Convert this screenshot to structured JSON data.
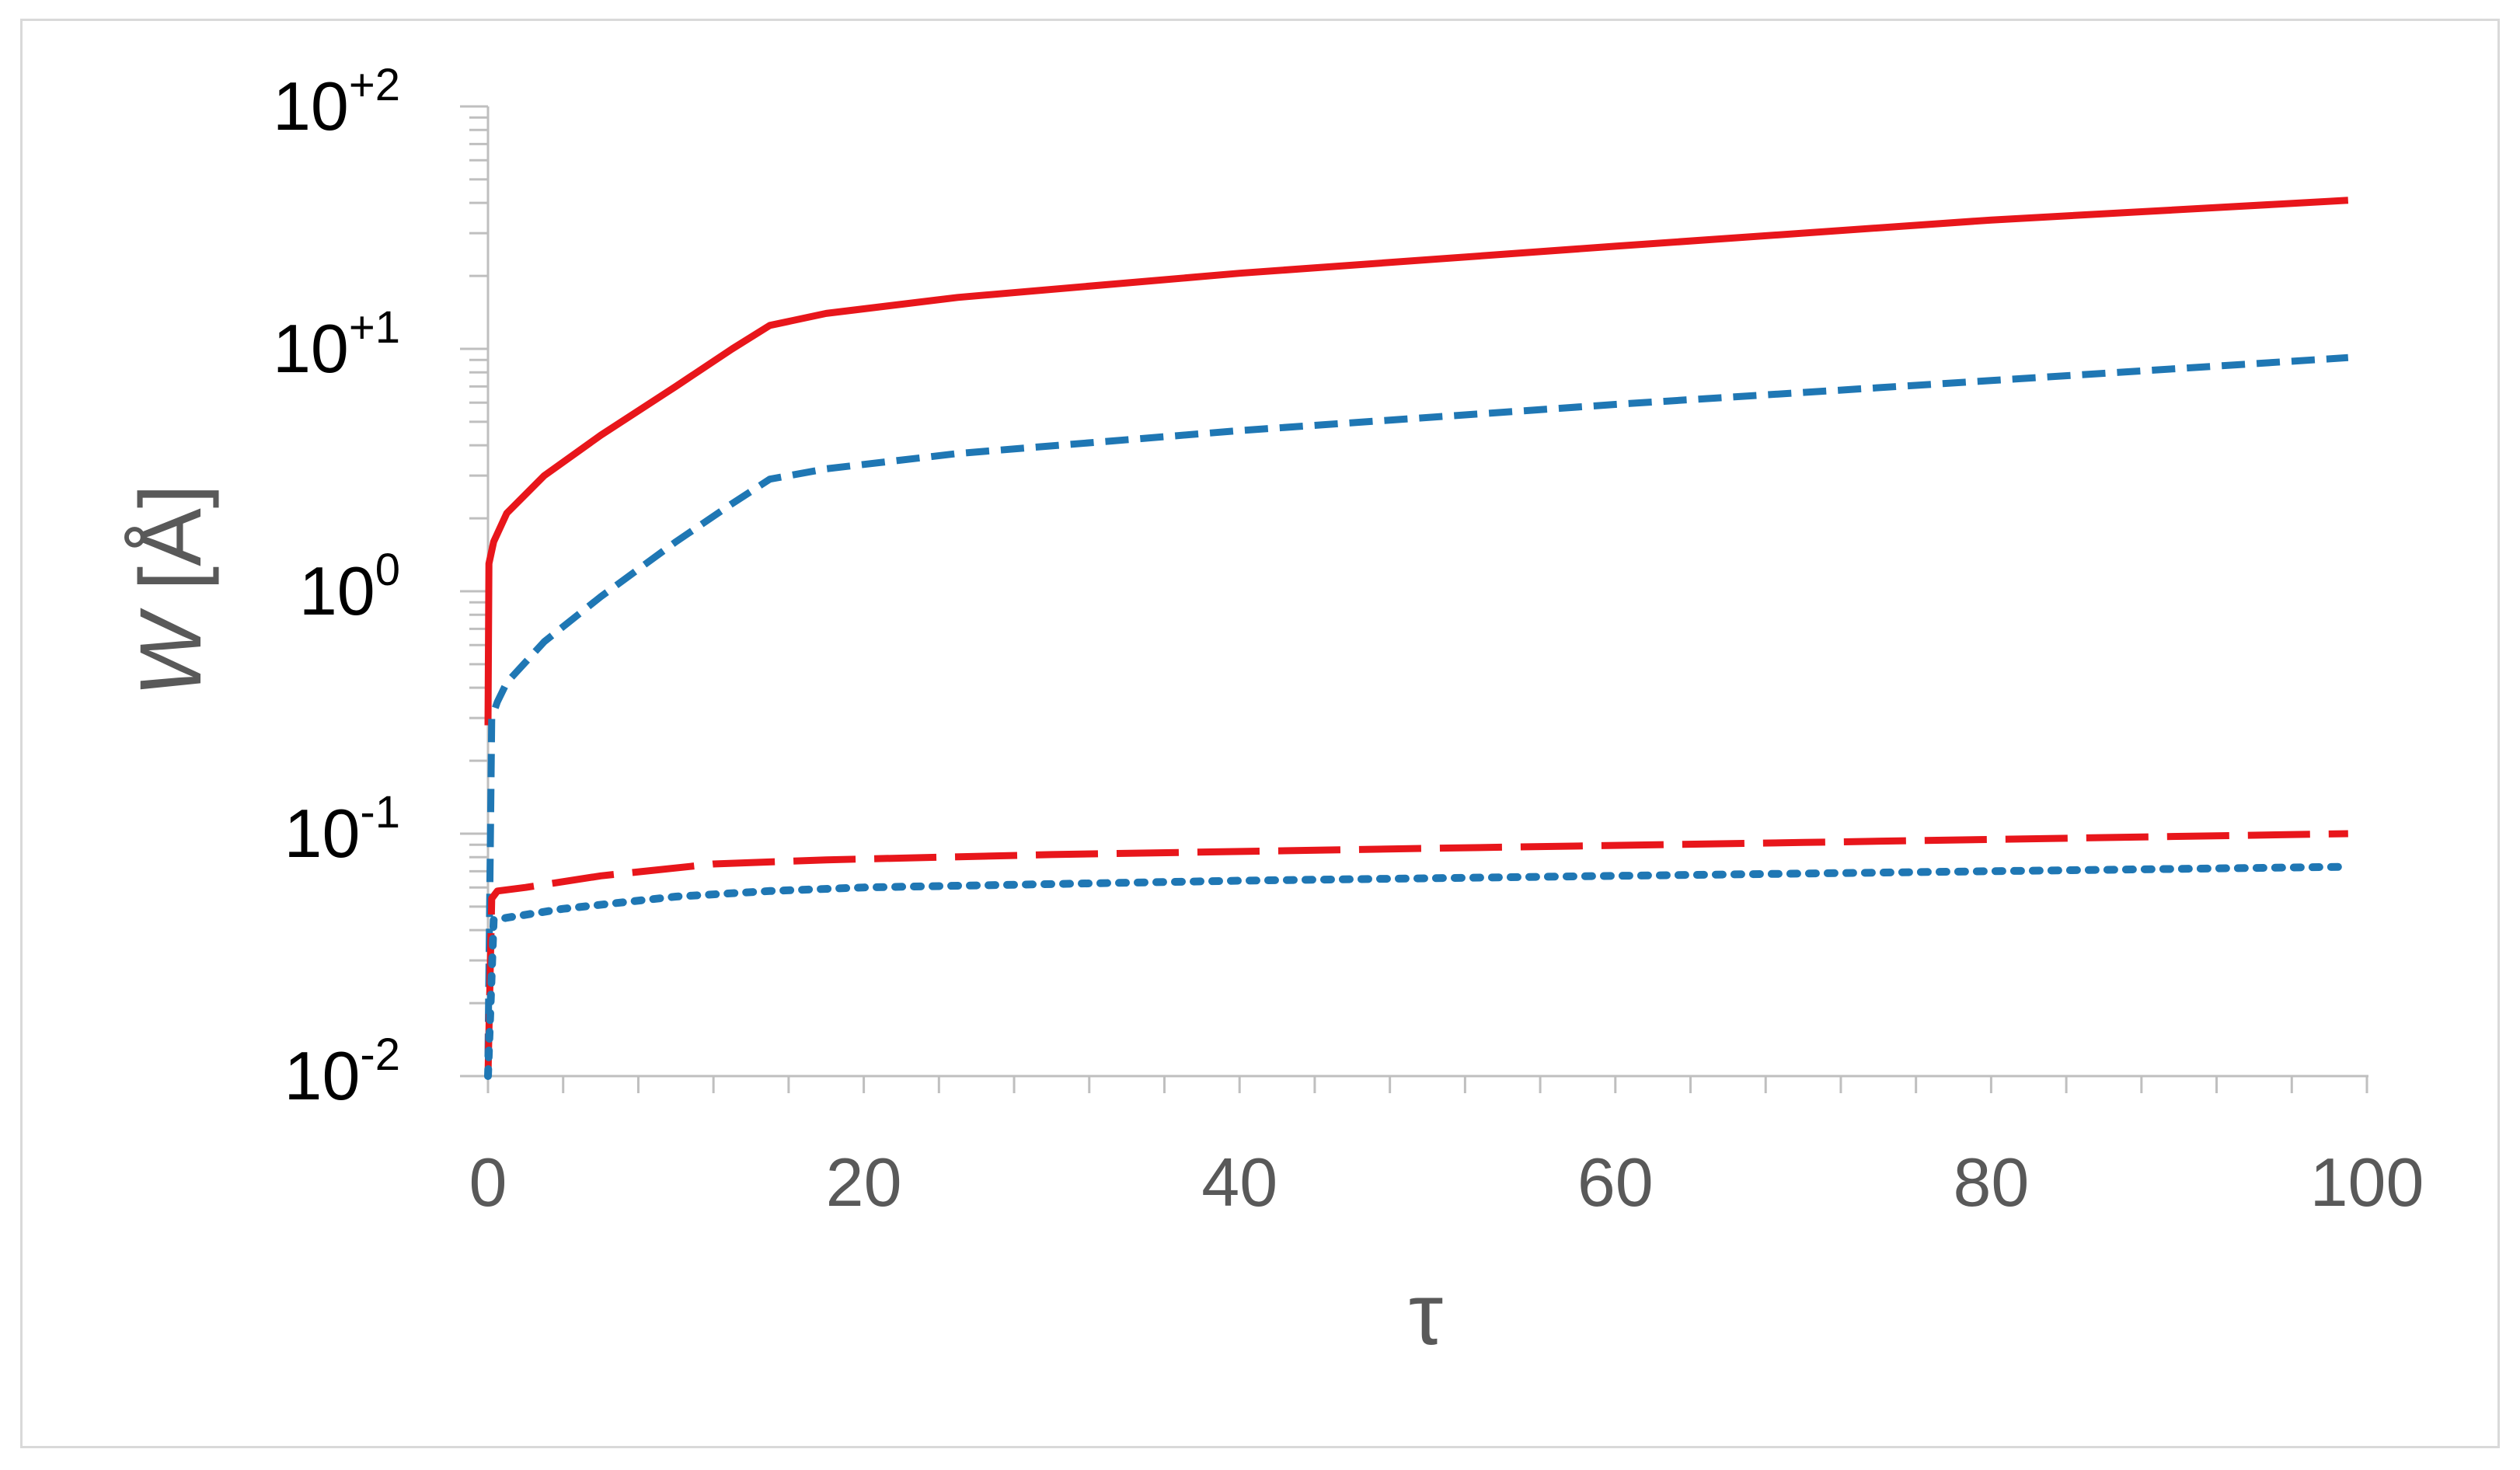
{
  "chart_data": {
    "type": "line",
    "title": "",
    "xlabel": "τ",
    "ylabel": {
      "symbol": "W",
      "unit": "[Å]"
    },
    "xlim": [
      0,
      100
    ],
    "ylim": [
      0.01,
      100
    ],
    "yscale": "log",
    "grid": false,
    "legend": "none",
    "x_ticks": [
      "0",
      "20",
      "40",
      "60",
      "80",
      "100"
    ],
    "y_ticks": [
      {
        "base": "10",
        "exp": "-2"
      },
      {
        "base": "10",
        "exp": "-1"
      },
      {
        "base": "10",
        "exp": "0"
      },
      {
        "base": "10",
        "exp": "+1"
      },
      {
        "base": "10",
        "exp": "+2"
      }
    ],
    "series": [
      {
        "color": "#e8161b",
        "style": "solid",
        "x": [
          0,
          0.05,
          0.3,
          1,
          3,
          6,
          10,
          13,
          15,
          18,
          25,
          40,
          60,
          80,
          99
        ],
        "y": [
          0.28,
          1.3,
          1.6,
          2.1,
          3.0,
          4.4,
          7.0,
          10.0,
          12.5,
          14.0,
          16.3,
          20.5,
          26.5,
          34.0,
          41.0
        ]
      },
      {
        "color": "#1f77b4",
        "style": "dashed",
        "x": [
          0,
          0.2,
          0.5,
          1,
          3,
          6,
          10,
          13,
          15,
          18,
          25,
          40,
          60,
          80,
          99
        ],
        "y": [
          0.012,
          0.3,
          0.35,
          0.42,
          0.62,
          0.95,
          1.6,
          2.3,
          2.9,
          3.2,
          3.7,
          4.6,
          5.9,
          7.4,
          9.2
        ]
      },
      {
        "color": "#e8161b",
        "style": "long-dash",
        "x": [
          0,
          0.2,
          0.5,
          2,
          6,
          12,
          18,
          30,
          50,
          70,
          99
        ],
        "y": [
          0.01,
          0.054,
          0.058,
          0.06,
          0.067,
          0.075,
          0.078,
          0.082,
          0.087,
          0.092,
          0.1
        ]
      },
      {
        "color": "#1f77b4",
        "style": "dotted",
        "x": [
          0,
          0.3,
          1,
          4,
          10,
          15,
          20,
          40,
          60,
          80,
          99
        ],
        "y": [
          0.01,
          0.044,
          0.045,
          0.049,
          0.055,
          0.058,
          0.06,
          0.064,
          0.067,
          0.07,
          0.073
        ]
      }
    ]
  }
}
